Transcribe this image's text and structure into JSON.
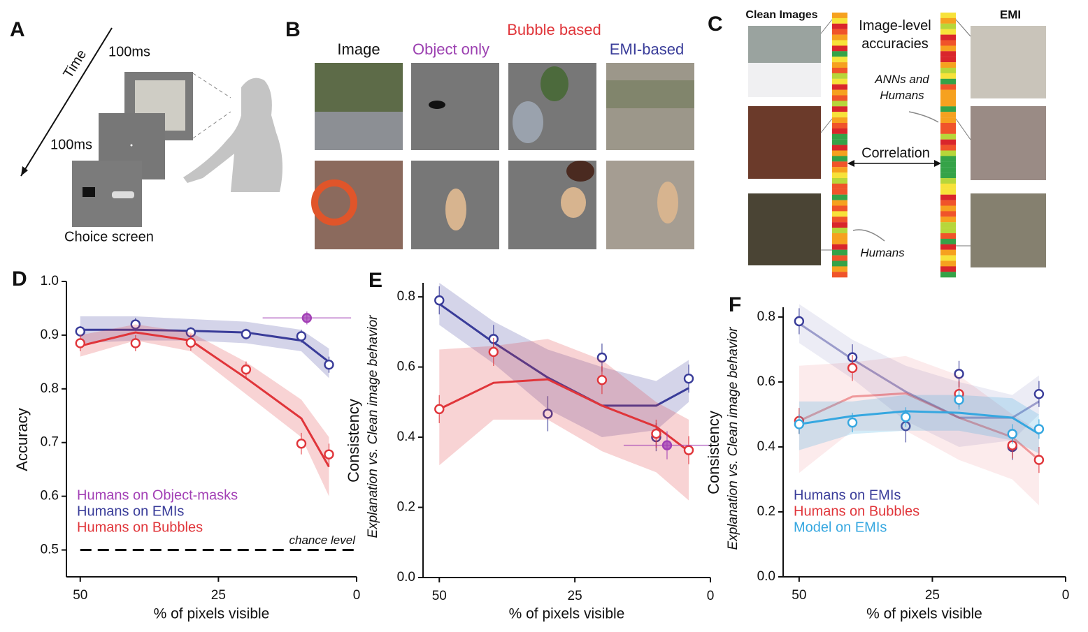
{
  "panels": {
    "A": {
      "letter": "A",
      "time": "Time",
      "stim_duration": "100ms",
      "fix_duration": "100ms",
      "choice": "Choice screen"
    },
    "B": {
      "letter": "B",
      "columns": [
        "Image",
        "Object only",
        "Bubble based",
        "EMI-based"
      ]
    },
    "C": {
      "letter": "C",
      "clean": "Clean Images",
      "accuracies": "Image-level accuracies",
      "anns": "ANNs and Humans",
      "correlation": "Correlation",
      "humans": "Humans",
      "emi": "EMI"
    }
  },
  "chart_data": [
    {
      "type": "line",
      "label": "D",
      "xlabel": "% of pixels visible",
      "ylabel": "Accuracy",
      "xlim": [
        52.5,
        0
      ],
      "xticks": [
        50,
        25,
        0
      ],
      "ylim": [
        0.45,
        1.0
      ],
      "yticks": [
        0.5,
        0.6,
        0.7,
        0.8,
        0.9,
        {
          "value": 1,
          "label": "1.0"
        }
      ],
      "legend": "lower left",
      "hline": {
        "value": 0.5,
        "label": "chance level"
      },
      "series": [
        {
          "name": "Humans on Object-masks",
          "color": "#a23fb5",
          "filled": true,
          "x": [
            9
          ],
          "values": [
            0.932
          ],
          "errors": [
            0.012
          ],
          "xerr": [
            8
          ]
        },
        {
          "name": "Humans on EMIs",
          "color": "#393c99",
          "x": [
            50,
            40,
            30,
            20,
            10,
            5
          ],
          "values": [
            0.907,
            0.92,
            0.905,
            0.902,
            0.898,
            0.845
          ],
          "errors": [
            0.01,
            0.012,
            0.01,
            0.01,
            0.012,
            0.015
          ],
          "fit": [
            0.91,
            0.91,
            0.908,
            0.905,
            0.89,
            0.85
          ],
          "band_low": [
            0.885,
            0.89,
            0.89,
            0.885,
            0.87,
            0.82
          ],
          "band_high": [
            0.935,
            0.935,
            0.93,
            0.925,
            0.91,
            0.875
          ]
        },
        {
          "name": "Humans on Bubbles",
          "color": "#e0353a",
          "x": [
            50,
            40,
            30,
            20,
            10,
            5
          ],
          "values": [
            0.885,
            0.885,
            0.886,
            0.836,
            0.698,
            0.678
          ],
          "errors": [
            0.015,
            0.015,
            0.015,
            0.015,
            0.02,
            0.02
          ],
          "fit": [
            0.88,
            0.905,
            0.89,
            0.82,
            0.745,
            0.655
          ],
          "band_low": [
            0.86,
            0.89,
            0.87,
            0.79,
            0.71,
            0.6
          ],
          "band_high": [
            0.9,
            0.92,
            0.905,
            0.85,
            0.78,
            0.71
          ]
        }
      ]
    },
    {
      "type": "line",
      "label": "E",
      "xlabel": "% of pixels visible",
      "ylabel": "Consistency",
      "ylabel2": "Explanation vs. Clean image behavior",
      "xlim": [
        53,
        0
      ],
      "xticks": [
        50,
        25,
        0
      ],
      "ylim": [
        0,
        0.84
      ],
      "yticks": [
        {
          "value": 0,
          "label": "0.0"
        },
        0.2,
        0.4,
        0.6,
        0.8
      ],
      "series": [
        {
          "color": "#393c99",
          "x": [
            50,
            40,
            30,
            20,
            10,
            4
          ],
          "values": [
            0.79,
            0.68,
            0.467,
            0.627,
            0.4,
            0.567
          ],
          "errors": [
            0.04,
            0.04,
            0.05,
            0.04,
            0.04,
            0.04
          ],
          "fit": [
            0.78,
            0.67,
            0.57,
            0.49,
            0.49,
            0.54
          ],
          "band_low": [
            0.72,
            0.61,
            0.48,
            0.4,
            0.42,
            0.5
          ],
          "band_high": [
            0.84,
            0.73,
            0.65,
            0.6,
            0.56,
            0.62
          ]
        },
        {
          "color": "#e0353a",
          "x": [
            50,
            40,
            30,
            20,
            10,
            4
          ],
          "values": [
            0.48,
            0.643,
            null,
            0.563,
            0.41,
            0.363
          ],
          "errors": [
            0.04,
            0.04,
            null,
            0.04,
            0.04,
            0.04
          ],
          "fit": [
            0.48,
            0.555,
            0.565,
            0.49,
            0.43,
            0.36
          ],
          "band_low": [
            0.32,
            0.45,
            0.45,
            0.36,
            0.3,
            0.22
          ],
          "band_high": [
            0.65,
            0.66,
            0.68,
            0.62,
            0.5,
            0.45
          ]
        },
        {
          "color": "#a23fb5",
          "filled": true,
          "x": [
            8
          ],
          "values": [
            0.377
          ],
          "errors": [
            0.04
          ],
          "xerr": [
            8
          ]
        }
      ]
    },
    {
      "type": "line",
      "label": "F",
      "xlabel": "% of pixels visible",
      "ylabel": "Consistency",
      "ylabel2": "Explanation vs. Clean image behavior",
      "xlim": [
        53,
        0
      ],
      "xticks": [
        50,
        25,
        0
      ],
      "ylim": [
        0,
        0.83
      ],
      "yticks": [
        {
          "value": 0,
          "label": "0.0"
        },
        0.2,
        0.4,
        0.6,
        0.8
      ],
      "legend": "lower left",
      "series": [
        {
          "name": "Humans on EMIs",
          "color": "#393c99",
          "line_opacity": 0.45,
          "x": [
            50,
            40,
            30,
            20,
            10,
            5
          ],
          "values": [
            0.787,
            0.676,
            0.464,
            0.625,
            0.4,
            0.563
          ],
          "errors": [
            0.04,
            0.04,
            0.05,
            0.04,
            0.04,
            0.04
          ],
          "fit": [
            0.78,
            0.67,
            0.57,
            0.49,
            0.49,
            0.54
          ],
          "band_low": [
            0.72,
            0.61,
            0.48,
            0.4,
            0.42,
            0.5
          ],
          "band_high": [
            0.84,
            0.73,
            0.65,
            0.6,
            0.56,
            0.62
          ]
        },
        {
          "name": "Humans on Bubbles",
          "color": "#e0353a",
          "line_opacity": 0.45,
          "x": [
            50,
            40,
            30,
            20,
            10,
            5
          ],
          "values": [
            0.48,
            0.643,
            null,
            0.563,
            0.405,
            0.36
          ],
          "errors": [
            0.04,
            0.04,
            null,
            0.04,
            0.04,
            0.04
          ],
          "fit": [
            0.48,
            0.555,
            0.565,
            0.49,
            0.43,
            0.36
          ],
          "band_low": [
            0.32,
            0.45,
            0.45,
            0.36,
            0.3,
            0.22
          ],
          "band_high": [
            0.65,
            0.66,
            0.68,
            0.62,
            0.5,
            0.45
          ]
        },
        {
          "name": "Model on EMIs",
          "color": "#35a7e0",
          "x": [
            50,
            40,
            30,
            20,
            10,
            5
          ],
          "values": [
            0.47,
            0.475,
            0.492,
            0.545,
            0.44,
            0.455
          ],
          "errors": [
            0.03,
            0.03,
            0.03,
            0.03,
            0.03,
            0.03
          ],
          "fit": [
            0.47,
            0.495,
            0.51,
            0.505,
            0.49,
            0.44
          ],
          "band_low": [
            0.39,
            0.44,
            0.45,
            0.45,
            0.42,
            0.38
          ],
          "band_high": [
            0.54,
            0.54,
            0.56,
            0.56,
            0.55,
            0.5
          ]
        }
      ]
    }
  ]
}
